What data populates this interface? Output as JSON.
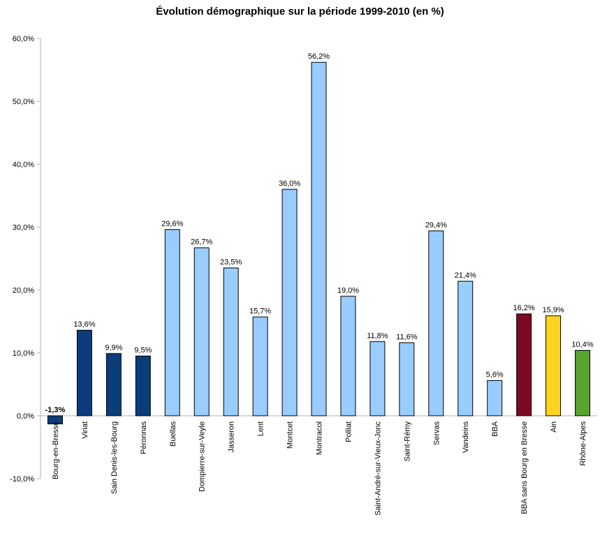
{
  "chart_data": {
    "type": "bar",
    "title": "Évolution démographique sur la période 1999-2010 (en %)",
    "xlabel": "",
    "ylabel": "",
    "ylim": [
      -10,
      60
    ],
    "ytick_values": [
      -10,
      0,
      10,
      20,
      30,
      40,
      50,
      60
    ],
    "ytick_labels": [
      "-10,0%",
      "0,0%",
      "10,0%",
      "20,0%",
      "30,0%",
      "40,0%",
      "50,0%",
      "60,0%"
    ],
    "grid": false,
    "legend": "none",
    "categories": [
      "Bourg-en-Bresse",
      "Viriat",
      "Sain Denis-les-Bourg",
      "Péronnas",
      "Buellas",
      "Dompierre-sur-Veyle",
      "Jasseron",
      "Lent",
      "Montcet",
      "Montracol",
      "Polliat",
      "Saint-André-sur-Vieux-Jonc",
      "Saint-Rémy",
      "Servas",
      "Vandeins",
      "BBA",
      "BBA sans Bourg en Bresse",
      "Ain",
      "Rhône-Alpes"
    ],
    "values": [
      -1.3,
      13.6,
      9.9,
      9.5,
      29.6,
      26.7,
      23.5,
      15.7,
      36.0,
      56.2,
      19.0,
      11.8,
      11.6,
      29.4,
      21.4,
      5.6,
      16.2,
      15.9,
      10.4
    ],
    "value_labels": [
      "-1,3%",
      "13,6%",
      "9,9%",
      "9,5%",
      "29,6%",
      "26,7%",
      "23,5%",
      "15,7%",
      "36,0%",
      "56,2%",
      "19,0%",
      "11,8%",
      "11,6%",
      "29,4%",
      "21,4%",
      "5,6%",
      "16,2%",
      "15,9%",
      "10,4%"
    ],
    "bar_colors": [
      "#0b3d7a",
      "#0b3d7a",
      "#0b3d7a",
      "#0b3d7a",
      "#99ccff",
      "#99ccff",
      "#99ccff",
      "#99ccff",
      "#99ccff",
      "#99ccff",
      "#99ccff",
      "#99ccff",
      "#99ccff",
      "#99ccff",
      "#99ccff",
      "#99ccff",
      "#7b0a24",
      "#ffd320",
      "#57a32e"
    ]
  }
}
